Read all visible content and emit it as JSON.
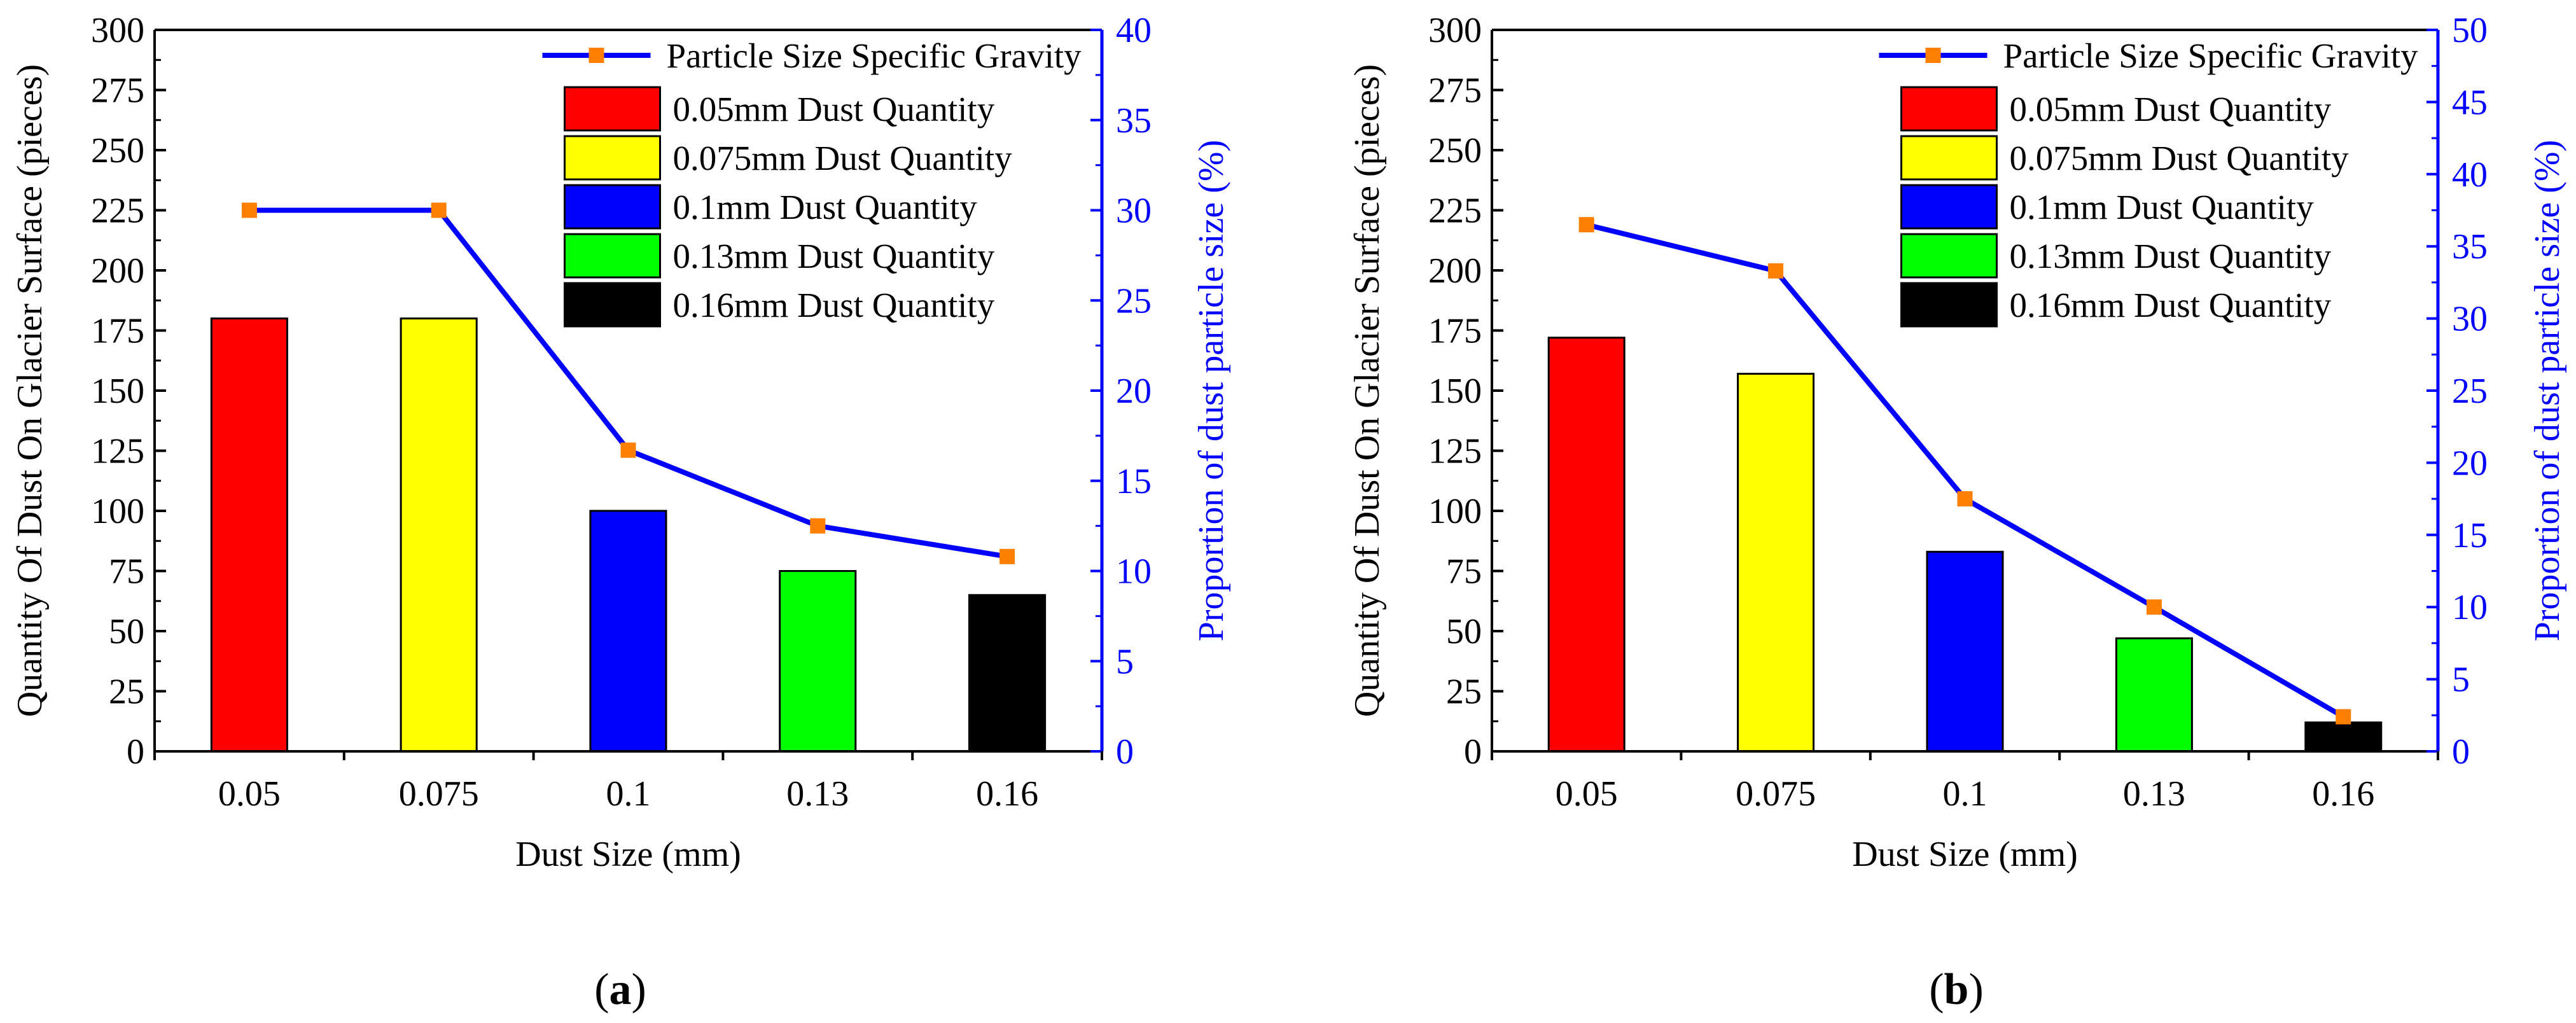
{
  "chart_data": [
    {
      "panel_label": "(a)",
      "panel_letter": "a",
      "type": "bar+line",
      "xlabel": "Dust Size (mm)",
      "ylabel_left": "Quantity Of Dust On Glacier Surface (pieces)",
      "ylabel_right": "Proportion of dust particle size (%)",
      "categories": [
        "0.05",
        "0.075",
        "0.1",
        "0.13",
        "0.16"
      ],
      "y_left_lim": [
        0,
        300
      ],
      "y_left_ticks": [
        "0",
        "25",
        "50",
        "75",
        "100",
        "125",
        "150",
        "175",
        "200",
        "225",
        "250",
        "275",
        "300"
      ],
      "y_right_lim": [
        0,
        40
      ],
      "y_right_ticks": [
        "0",
        "5",
        "10",
        "15",
        "20",
        "25",
        "30",
        "35",
        "40"
      ],
      "bars": [
        {
          "name": "0.05mm Dust Quantity",
          "value": 180,
          "color": "#ff0000"
        },
        {
          "name": "0.075mm Dust Quantity",
          "value": 180,
          "color": "#ffff00"
        },
        {
          "name": "0.1mm Dust Quantity",
          "value": 100,
          "color": "#0000ff"
        },
        {
          "name": "0.13mm Dust Quantity",
          "value": 75,
          "color": "#00ff00"
        },
        {
          "name": "0.16mm Dust Quantity",
          "value": 65,
          "color": "#000000"
        }
      ],
      "line": {
        "name": "Particle Size Specific Gravity",
        "values": [
          30,
          30,
          16.7,
          12.5,
          10.8
        ],
        "line_color": "#0000ff",
        "marker_color": "#ff7f00"
      },
      "legend_position": "top-right",
      "grid": false
    },
    {
      "panel_label": "(b)",
      "panel_letter": "b",
      "type": "bar+line",
      "xlabel": "Dust Size (mm)",
      "ylabel_left": "Quantity Of Dust On Glacier Surface (pieces)",
      "ylabel_right": "Proportion of dust particle size (%)",
      "categories": [
        "0.05",
        "0.075",
        "0.1",
        "0.13",
        "0.16"
      ],
      "y_left_lim": [
        0,
        300
      ],
      "y_left_ticks": [
        "0",
        "25",
        "50",
        "75",
        "100",
        "125",
        "150",
        "175",
        "200",
        "225",
        "250",
        "275",
        "300"
      ],
      "y_right_lim": [
        0,
        50
      ],
      "y_right_ticks": [
        "0",
        "5",
        "10",
        "15",
        "20",
        "25",
        "30",
        "35",
        "40",
        "45",
        "50"
      ],
      "bars": [
        {
          "name": "0.05mm Dust Quantity",
          "value": 172,
          "color": "#ff0000"
        },
        {
          "name": "0.075mm Dust Quantity",
          "value": 157,
          "color": "#ffff00"
        },
        {
          "name": "0.1mm Dust Quantity",
          "value": 83,
          "color": "#0000ff"
        },
        {
          "name": "0.13mm Dust Quantity",
          "value": 47,
          "color": "#00ff00"
        },
        {
          "name": "0.16mm Dust Quantity",
          "value": 12,
          "color": "#000000"
        }
      ],
      "line": {
        "name": "Particle Size Specific Gravity",
        "values": [
          36.5,
          33.3,
          17.5,
          10,
          2.4
        ],
        "line_color": "#0000ff",
        "marker_color": "#ff7f00"
      },
      "legend_position": "top-right",
      "grid": false
    }
  ]
}
